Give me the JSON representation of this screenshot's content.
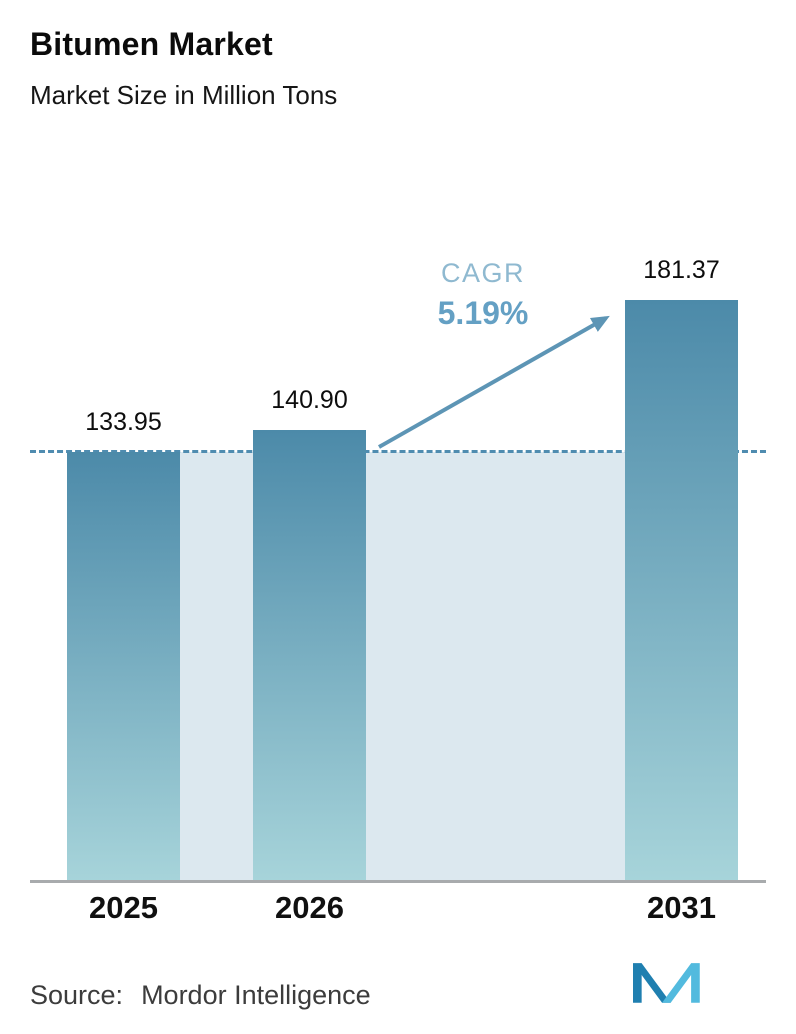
{
  "header": {
    "title": "Bitumen Market",
    "subtitle": "Market Size in Million Tons"
  },
  "chart_data": {
    "type": "bar",
    "title": "Bitumen Market",
    "subtitle": "Market Size in Million Tons",
    "unit": "Million Tons",
    "categories": [
      "2025",
      "2026",
      "2031"
    ],
    "values": [
      133.95,
      140.9,
      181.37
    ],
    "value_labels": [
      "133.95",
      "140.90",
      "181.37"
    ],
    "ylim": [
      0,
      200
    ],
    "grid": false,
    "legend": "none",
    "reference_line": {
      "value": 133.95,
      "style": "dashed"
    },
    "annotation": {
      "label": "CAGR",
      "value": "5.19%"
    },
    "colors": {
      "bar_gradient_top": "#4c8aa9",
      "bar_gradient_bottom": "#a7d4da",
      "backdrop": "#dce8ef",
      "dashed_line": "#4f8cb0",
      "arrow": "#5d95b5",
      "cagr_label": "#8fb9d0",
      "cagr_value": "#64a0c4"
    }
  },
  "footer": {
    "source_label": "Source:",
    "source_value": "Mordor Intelligence",
    "logo_name": "mordor-intelligence-logo",
    "logo_colors": {
      "dark": "#1f7fb0",
      "light": "#52bade"
    }
  }
}
